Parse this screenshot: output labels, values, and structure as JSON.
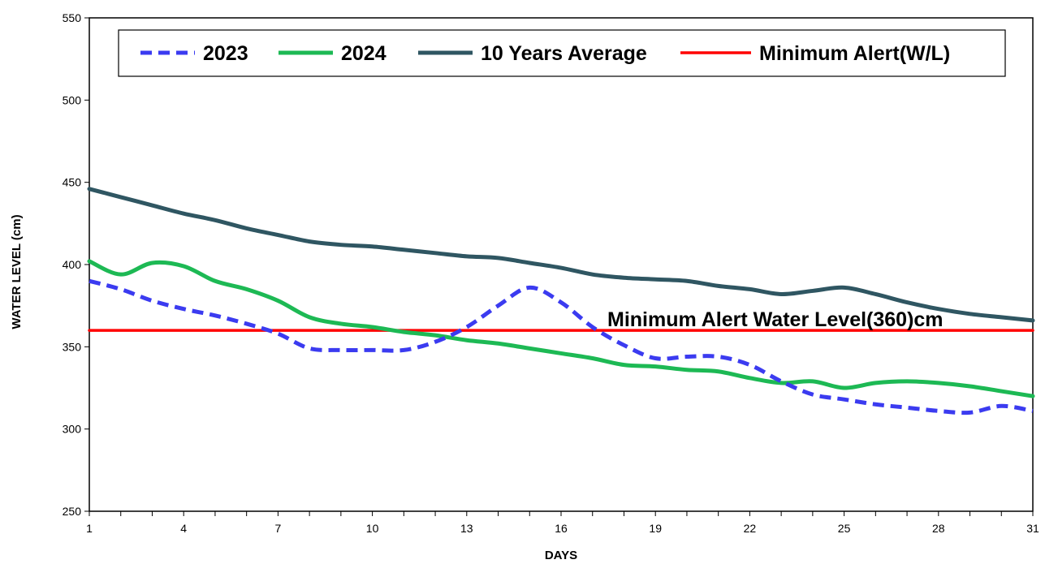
{
  "chart_data": {
    "type": "line",
    "xlabel": "DAYS",
    "ylabel": "WATER LEVEL (cm)",
    "xlim": [
      1,
      31
    ],
    "ylim": [
      250,
      550
    ],
    "x_ticks": [
      "1",
      "4",
      "7",
      "10",
      "13",
      "16",
      "19",
      "22",
      "25",
      "28",
      "31"
    ],
    "y_ticks": [
      "250",
      "300",
      "350",
      "400",
      "450",
      "500",
      "550"
    ],
    "grid": false,
    "legend_position": "top",
    "annotation": "Minimum Alert Water Level(360)cm",
    "x": [
      1,
      2,
      3,
      4,
      5,
      6,
      7,
      8,
      9,
      10,
      11,
      12,
      13,
      14,
      15,
      16,
      17,
      18,
      19,
      20,
      21,
      22,
      23,
      24,
      25,
      26,
      27,
      28,
      29,
      30,
      31
    ],
    "series": [
      {
        "name": "2023",
        "color": "#3b3bf0",
        "style": "dashed",
        "values": [
          390,
          385,
          378,
          373,
          369,
          364,
          358,
          349,
          348,
          348,
          348,
          353,
          362,
          375,
          386,
          377,
          362,
          351,
          343,
          344,
          344,
          339,
          329,
          321,
          318,
          315,
          313,
          311,
          310,
          314,
          311
        ]
      },
      {
        "name": "2024",
        "color": "#1db954",
        "style": "solid",
        "values": [
          402,
          394,
          401,
          399,
          390,
          385,
          378,
          368,
          364,
          362,
          359,
          357,
          354,
          352,
          349,
          346,
          343,
          339,
          338,
          336,
          335,
          331,
          328,
          329,
          325,
          328,
          329,
          328,
          326,
          323,
          320
        ]
      },
      {
        "name": "10 Years Average",
        "color": "#2f5662",
        "style": "solid",
        "values": [
          446,
          441,
          436,
          431,
          427,
          422,
          418,
          414,
          412,
          411,
          409,
          407,
          405,
          404,
          401,
          398,
          394,
          392,
          391,
          390,
          387,
          385,
          382,
          384,
          386,
          382,
          377,
          373,
          370,
          368,
          366
        ]
      },
      {
        "name": "Minimum Alert(W/L)",
        "color": "#ff0000",
        "style": "solid",
        "values": [
          360,
          360,
          360,
          360,
          360,
          360,
          360,
          360,
          360,
          360,
          360,
          360,
          360,
          360,
          360,
          360,
          360,
          360,
          360,
          360,
          360,
          360,
          360,
          360,
          360,
          360,
          360,
          360,
          360,
          360,
          360
        ]
      }
    ]
  }
}
